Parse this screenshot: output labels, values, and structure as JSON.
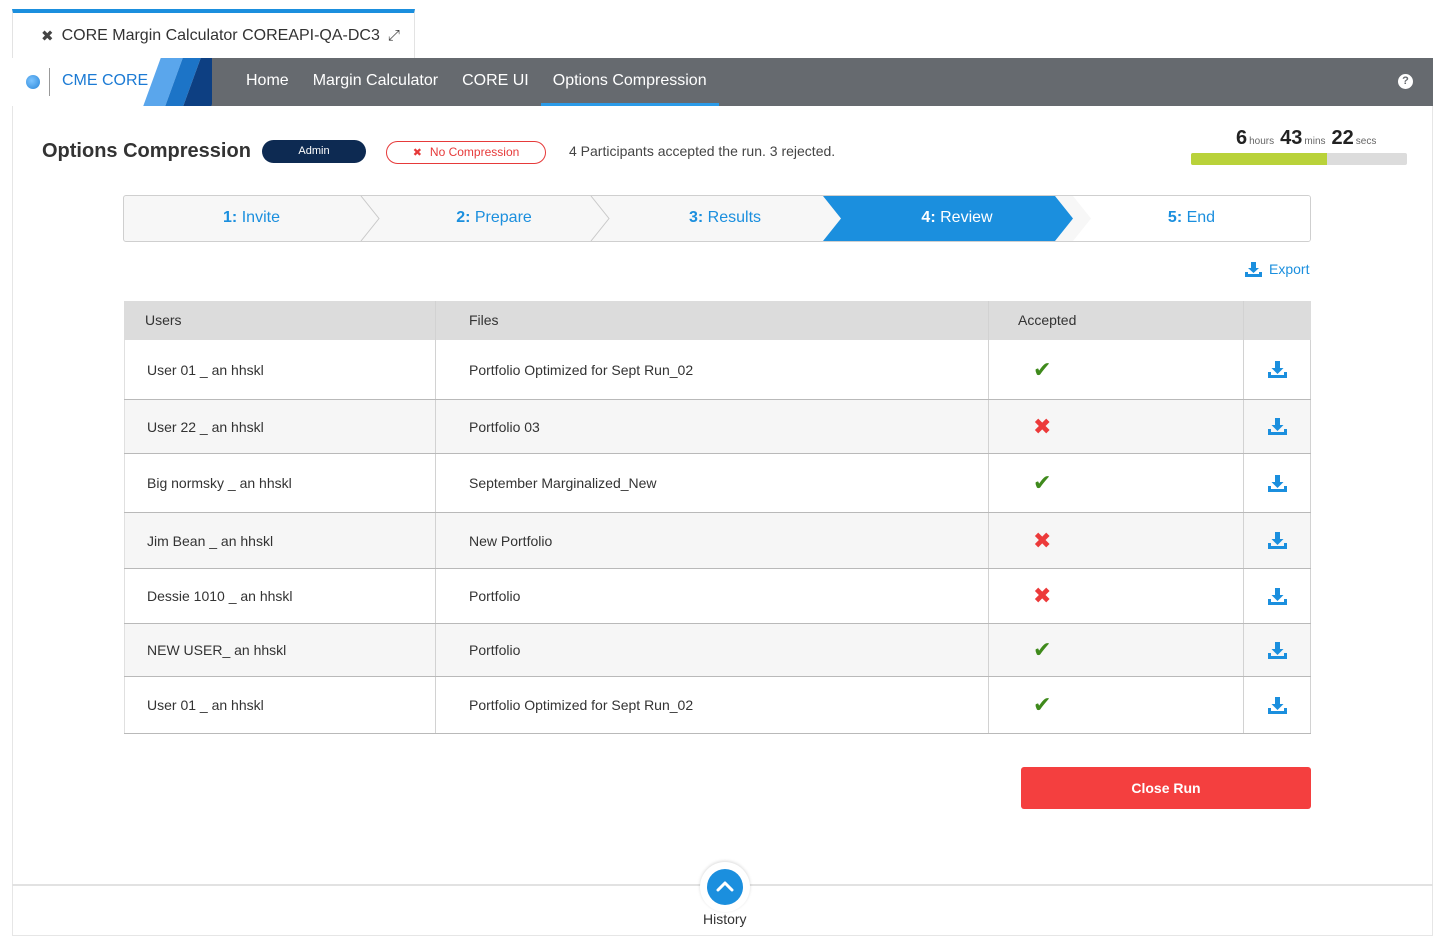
{
  "window_tab": {
    "title": "CORE Margin Calculator COREAPI-QA-DC3",
    "close_glyph": "✖",
    "expand_glyph": "⤢"
  },
  "nav": {
    "brand": "CME CORE",
    "items": [
      {
        "label": "Home",
        "active": false
      },
      {
        "label": "Margin Calculator",
        "active": false
      },
      {
        "label": "CORE UI",
        "active": false
      },
      {
        "label": "Options Compression",
        "active": true
      }
    ],
    "help_glyph": "?"
  },
  "header": {
    "title": "Options Compression",
    "role_badge": "Admin",
    "compression_badge": "No Compression",
    "compression_icon": "✖",
    "status_text": "4 Participants accepted the run. 3 rejected."
  },
  "timer": {
    "hours": "6",
    "hours_unit": "hours",
    "mins": "43",
    "mins_unit": "mins",
    "secs": "22",
    "secs_unit": "secs",
    "progress_fraction": 0.63
  },
  "stepper": {
    "steps": [
      {
        "num": "1:",
        "label": "Invite"
      },
      {
        "num": "2:",
        "label": "Prepare"
      },
      {
        "num": "3:",
        "label": "Results"
      },
      {
        "num": "4:",
        "label": "Review"
      },
      {
        "num": "5:",
        "label": "End"
      }
    ],
    "active_index": 3
  },
  "export_label": "Export",
  "table": {
    "headers": {
      "users": "Users",
      "files": "Files",
      "accepted": "Accepted",
      "action": ""
    },
    "rows": [
      {
        "user": "User 01 _ an hhskl",
        "file": "Portfolio Optimized for Sept Run_02",
        "accepted": true
      },
      {
        "user": "User 22 _ an hhskl",
        "file": "Portfolio 03",
        "accepted": false
      },
      {
        "user": "Big normsky _ an hhskl",
        "file": "September Marginalized_New",
        "accepted": true
      },
      {
        "user": "Jim Bean _ an hhskl",
        "file": "New Portfolio",
        "accepted": false
      },
      {
        "user": "Dessie 1010 _ an hhskl",
        "file": "Portfolio",
        "accepted": false
      },
      {
        "user": "NEW USER_ an hhskl",
        "file": "Portfolio",
        "accepted": true
      },
      {
        "user": "User 01 _ an hhskl",
        "file": "Portfolio Optimized for Sept Run_02",
        "accepted": true
      }
    ],
    "accepted_glyph": "✔",
    "rejected_glyph": "✖"
  },
  "close_run_label": "Close Run",
  "history_label": "History",
  "colors": {
    "accent": "#1b8fde",
    "danger": "#f43f3f",
    "nav_bg": "#666a6f",
    "accepted": "#3f8a1c",
    "rejected": "#ec3a3a",
    "progress": "#b9d23a"
  },
  "icons": {
    "download": "download-icon",
    "globe": "globe-icon",
    "chevron": "chevron-up-icon"
  }
}
